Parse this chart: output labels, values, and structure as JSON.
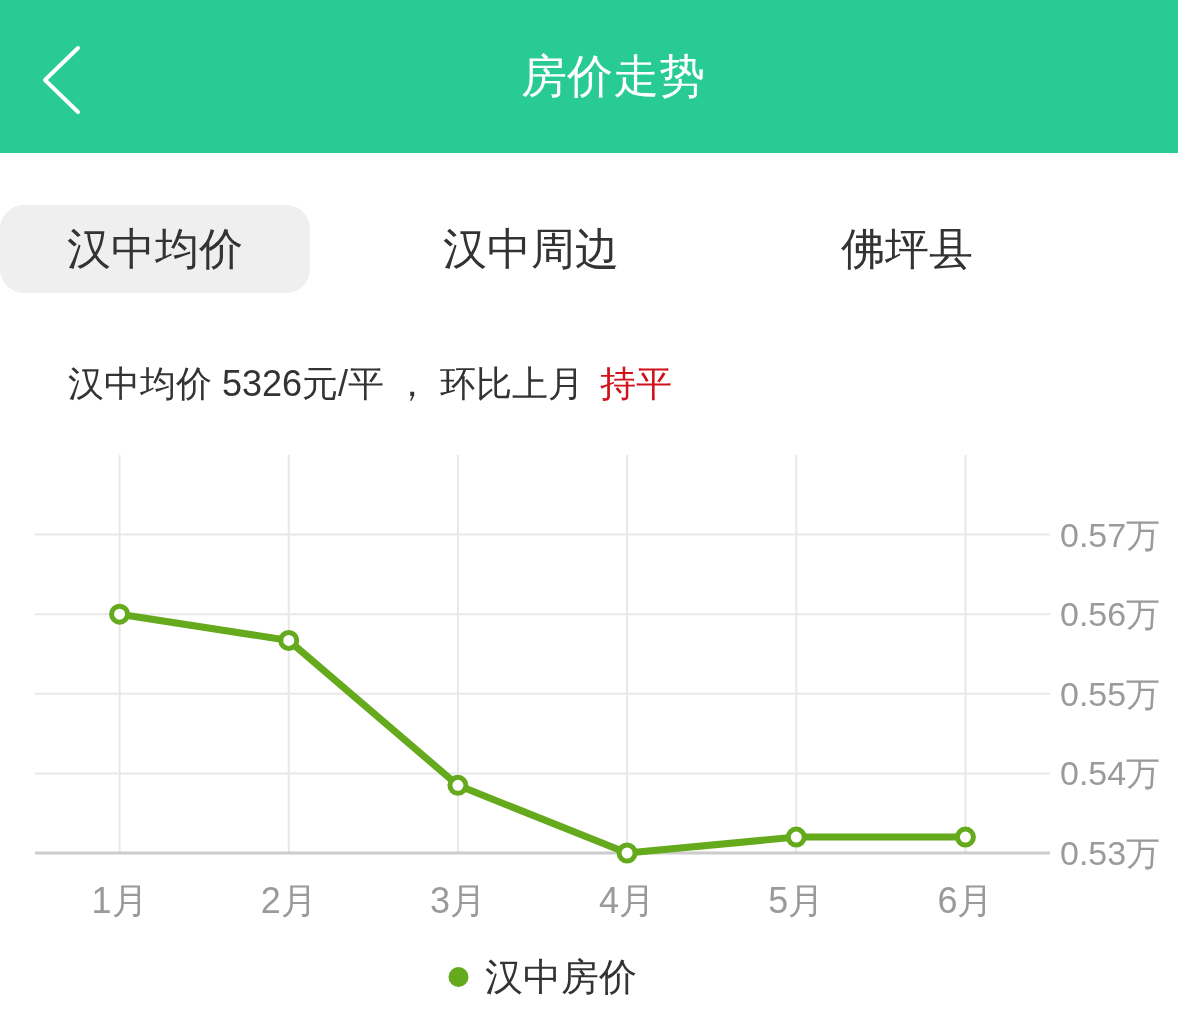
{
  "chart_data": {
    "type": "line",
    "title": "房价走势",
    "subtitle": "汉中均价 5326元/平 ， 环比上月",
    "annotations": [
      "汉中均价",
      "汉中周边",
      "佛坪县",
      "持平"
    ],
    "categories": [
      "1月",
      "2月",
      "3月",
      "4月",
      "5月",
      "6月"
    ],
    "series": [
      {
        "name": "汉中房价",
        "color": "#64aa1c",
        "values": [
          0.56,
          0.5567,
          0.5385,
          0.53,
          0.532,
          0.532
        ]
      }
    ],
    "ylim": [
      0.53,
      0.58
    ],
    "yticks": [
      {
        "value": 0.53,
        "label": "0.53万"
      },
      {
        "value": 0.54,
        "label": "0.54万"
      },
      {
        "value": 0.55,
        "label": "0.55万"
      },
      {
        "value": 0.56,
        "label": "0.56万"
      },
      {
        "value": 0.57,
        "label": "0.57万"
      }
    ],
    "grid": true,
    "legend": "bottom",
    "marker": "circle",
    "line_style": "solid"
  }
}
